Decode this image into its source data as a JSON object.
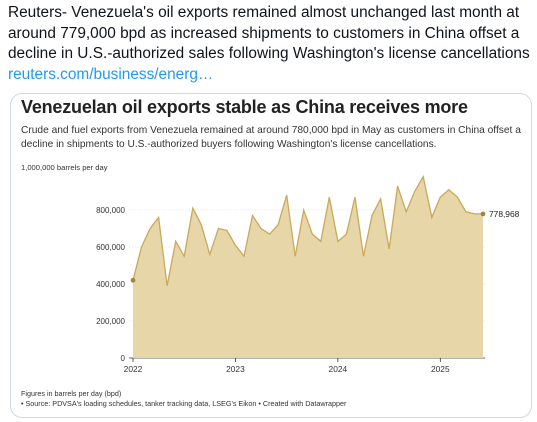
{
  "tweet": {
    "text": "Reuters- Venezuela's oil exports remained almost unchanged last month at around 779,000 bpd as increased shipments to customers in China offset a decline in U.S.-authorized sales following Washington's license cancellations ",
    "link_text": "reuters.com/business/energ…"
  },
  "chart_data": {
    "type": "area",
    "title": "Venezuelan oil exports stable as China receives more",
    "subtitle": "Crude and fuel exports from Venezuela remained at around 780,000 bpd in May as customers in China offset a decline in shipments to U.S.-authorized buyers following Washington's license cancellations.",
    "ylabel": "1,000,000 barrels per day",
    "ylim": [
      0,
      1000000
    ],
    "y_ticks": [
      0,
      200000,
      400000,
      600000,
      800000
    ],
    "y_tick_labels": [
      "0",
      "200,000",
      "400,000",
      "600,000",
      "800,000"
    ],
    "x_range": [
      2022.0,
      2025.4167
    ],
    "x_ticks": [
      2022,
      2023,
      2024,
      2025
    ],
    "x_tick_labels": [
      "2022",
      "2023",
      "2024",
      "2025"
    ],
    "series": [
      {
        "color": "#e6d6a8",
        "line_color": "#c9a95b",
        "x": [
          2022.0,
          2022.0833,
          2022.1667,
          2022.25,
          2022.3333,
          2022.4167,
          2022.5,
          2022.5833,
          2022.6667,
          2022.75,
          2022.8333,
          2022.9167,
          2023.0,
          2023.0833,
          2023.1667,
          2023.25,
          2023.3333,
          2023.4167,
          2023.5,
          2023.5833,
          2023.6667,
          2023.75,
          2023.8333,
          2023.9167,
          2024.0,
          2024.0833,
          2024.1667,
          2024.25,
          2024.3333,
          2024.4167,
          2024.5,
          2024.5833,
          2024.6667,
          2024.75,
          2024.8333,
          2024.9167,
          2025.0,
          2025.0833,
          2025.1667,
          2025.25,
          2025.3333,
          2025.4167
        ],
        "values": [
          420000,
          600000,
          700000,
          760000,
          390000,
          630000,
          550000,
          810000,
          720000,
          560000,
          700000,
          690000,
          610000,
          550000,
          770000,
          700000,
          670000,
          720000,
          880000,
          550000,
          800000,
          670000,
          630000,
          870000,
          630000,
          670000,
          870000,
          550000,
          770000,
          860000,
          590000,
          930000,
          790000,
          900000,
          980000,
          760000,
          870000,
          910000,
          870000,
          790000,
          779000,
          778968
        ]
      }
    ],
    "end_label": "778,968",
    "notes": [
      "Figures in barrels per day (bpd)",
      "• Source: PDVSA's loading schedules, tanker tracking data, LSEG's Eikon • Created with Datawrapper"
    ]
  }
}
